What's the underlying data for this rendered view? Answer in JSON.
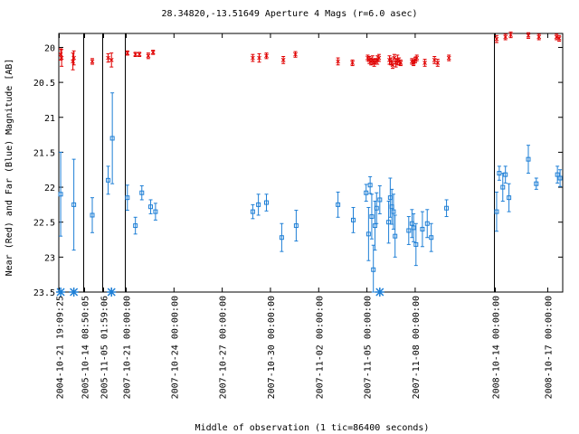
{
  "chart_data": {
    "type": "scatter",
    "title": "28.34820,-13.51649   Aperture 4 Mags (r=6.0 asec)",
    "xlabel": "Middle of observation (1 tic=86400 seconds)",
    "ylabel": "Near (Red) and Far (Blue) Magnitude [AB]",
    "ylim": [
      23.5,
      19.8
    ],
    "y_inverted": true,
    "y_ticks": [
      "20",
      "20.5",
      "21",
      "21.5",
      "22",
      "22.5",
      "23",
      "23.5"
    ],
    "x_axis": "broken time axis; each segment separated by a vertical line",
    "segments": [
      {
        "tick_label": "2004-10-21 19:09:25",
        "start": "2004-10-21 19:09:25",
        "span_days": 1.3
      },
      {
        "tick_label": "2005-10-14 08:50:05",
        "start": "2005-10-14 08:50:05",
        "span_days": 1.0
      },
      {
        "tick_label": "2005-11-05 01:59:06",
        "start": "2005-11-05 01:59:06",
        "span_days": 1.3
      },
      {
        "tick_label": "2007-10-21 00:00:00",
        "start": "2007-10-21 00:00:00",
        "span_days": 22.9
      },
      {
        "tick_label": "2008-10-14 00:00:00",
        "start": "2008-10-14 00:00:00",
        "span_days": 3.85
      }
    ],
    "inner_ticks": [
      {
        "label": "2007-10-24 00:00:00",
        "date": "2007-10-24"
      },
      {
        "label": "2007-10-27 00:00:00",
        "date": "2007-10-27"
      },
      {
        "label": "2007-10-30 00:00:00",
        "date": "2007-10-30"
      },
      {
        "label": "2007-11-02 00:00:00",
        "date": "2007-11-02"
      },
      {
        "label": "2007-11-05 00:00:00",
        "date": "2007-11-05"
      },
      {
        "label": "2007-11-08 00:00:00",
        "date": "2007-11-08"
      },
      {
        "label": "2008-10-17 00:00:00",
        "date": "2008-10-17"
      }
    ],
    "series": [
      {
        "color": "#e00000",
        "marker": "x",
        "points": [
          [
            0,
            0.1,
            20.1,
            0.08
          ],
          [
            0,
            0.15,
            20.15,
            0.12
          ],
          [
            0,
            0.75,
            20.2,
            0.12
          ],
          [
            0,
            0.8,
            20.15,
            0.1
          ],
          [
            1,
            0.45,
            20.2,
            0.04
          ],
          [
            2,
            0.3,
            20.15,
            0.06
          ],
          [
            2,
            0.5,
            20.18,
            0.1
          ],
          [
            3,
            0.1,
            20.08,
            0.03
          ],
          [
            3,
            0.6,
            20.1,
            0.03
          ],
          [
            3,
            0.85,
            20.1,
            0.03
          ],
          [
            3,
            1.4,
            20.12,
            0.04
          ],
          [
            3,
            1.7,
            20.07,
            0.03
          ],
          [
            3,
            7.9,
            20.15,
            0.05
          ],
          [
            3,
            8.3,
            20.15,
            0.06
          ],
          [
            3,
            8.75,
            20.12,
            0.04
          ],
          [
            3,
            9.8,
            20.18,
            0.05
          ],
          [
            3,
            10.55,
            20.1,
            0.04
          ],
          [
            3,
            13.2,
            20.2,
            0.05
          ],
          [
            3,
            14.1,
            20.22,
            0.04
          ],
          [
            3,
            15.05,
            20.15,
            0.04
          ],
          [
            3,
            15.15,
            20.18,
            0.05
          ],
          [
            3,
            15.25,
            20.2,
            0.05
          ],
          [
            3,
            15.35,
            20.18,
            0.06
          ],
          [
            3,
            15.45,
            20.22,
            0.05
          ],
          [
            3,
            15.55,
            20.2,
            0.04
          ],
          [
            3,
            15.65,
            20.18,
            0.06
          ],
          [
            3,
            15.75,
            20.15,
            0.05
          ],
          [
            3,
            16.4,
            20.18,
            0.06
          ],
          [
            3,
            16.5,
            20.2,
            0.05
          ],
          [
            3,
            16.6,
            20.25,
            0.05
          ],
          [
            3,
            16.7,
            20.15,
            0.05
          ],
          [
            3,
            16.8,
            20.22,
            0.06
          ],
          [
            3,
            16.9,
            20.18,
            0.07
          ],
          [
            3,
            17.0,
            20.2,
            0.05
          ],
          [
            3,
            17.1,
            20.22,
            0.04
          ],
          [
            3,
            17.8,
            20.2,
            0.04
          ],
          [
            3,
            17.9,
            20.22,
            0.04
          ],
          [
            3,
            18.0,
            20.18,
            0.04
          ],
          [
            3,
            18.1,
            20.15,
            0.04
          ],
          [
            3,
            18.6,
            20.22,
            0.05
          ],
          [
            3,
            19.2,
            20.18,
            0.05
          ],
          [
            3,
            19.4,
            20.22,
            0.05
          ],
          [
            3,
            20.1,
            20.15,
            0.04
          ],
          [
            4,
            0.1,
            19.88,
            0.05
          ],
          [
            4,
            0.6,
            19.85,
            0.04
          ],
          [
            4,
            0.9,
            19.82,
            0.04
          ],
          [
            4,
            1.9,
            19.83,
            0.04
          ],
          [
            4,
            2.5,
            19.85,
            0.04
          ],
          [
            4,
            3.5,
            19.85,
            0.04
          ],
          [
            4,
            3.65,
            19.87,
            0.04
          ]
        ]
      },
      {
        "color": "#1e7fd6",
        "marker": "square",
        "points": [
          [
            0,
            0.1,
            22.1,
            0.6
          ],
          [
            0,
            0.8,
            22.25,
            0.65
          ],
          [
            1,
            0.45,
            22.4,
            0.25
          ],
          [
            2,
            0.3,
            21.9,
            0.2
          ],
          [
            2,
            0.55,
            21.3,
            0.65
          ],
          [
            3,
            0.1,
            22.15,
            0.18
          ],
          [
            3,
            0.6,
            22.55,
            0.12
          ],
          [
            3,
            1.0,
            22.08,
            0.1
          ],
          [
            3,
            1.55,
            22.28,
            0.1
          ],
          [
            3,
            1.85,
            22.35,
            0.12
          ],
          [
            3,
            7.9,
            22.35,
            0.1
          ],
          [
            3,
            8.25,
            22.25,
            0.15
          ],
          [
            3,
            8.75,
            22.22,
            0.12
          ],
          [
            3,
            9.7,
            22.72,
            0.2
          ],
          [
            3,
            10.6,
            22.55,
            0.22
          ],
          [
            3,
            13.2,
            22.25,
            0.18
          ],
          [
            3,
            14.15,
            22.47,
            0.18
          ],
          [
            3,
            14.95,
            22.08,
            0.12
          ],
          [
            3,
            15.1,
            22.67,
            0.38
          ],
          [
            3,
            15.2,
            21.97,
            0.12
          ],
          [
            3,
            15.3,
            22.42,
            0.32
          ],
          [
            3,
            15.4,
            23.18,
            0.35
          ],
          [
            3,
            15.5,
            22.55,
            0.35
          ],
          [
            3,
            15.6,
            22.3,
            0.22
          ],
          [
            3,
            15.8,
            22.18,
            0.2
          ],
          [
            3,
            16.35,
            22.5,
            0.3
          ],
          [
            3,
            16.45,
            22.15,
            0.28
          ],
          [
            3,
            16.55,
            22.28,
            0.25
          ],
          [
            3,
            16.65,
            22.35,
            0.25
          ],
          [
            3,
            16.75,
            22.7,
            0.3
          ],
          [
            3,
            17.6,
            22.62,
            0.2
          ],
          [
            3,
            17.8,
            22.52,
            0.2
          ],
          [
            3,
            17.9,
            22.58,
            0.2
          ],
          [
            3,
            18.05,
            22.82,
            0.3
          ],
          [
            3,
            18.45,
            22.6,
            0.25
          ],
          [
            3,
            18.75,
            22.52,
            0.2
          ],
          [
            3,
            19.0,
            22.72,
            0.2
          ],
          [
            3,
            19.95,
            22.3,
            0.12
          ],
          [
            4,
            0.1,
            22.35,
            0.28
          ],
          [
            4,
            0.25,
            21.8,
            0.1
          ],
          [
            4,
            0.45,
            22.0,
            0.2
          ],
          [
            4,
            0.6,
            21.82,
            0.12
          ],
          [
            4,
            0.8,
            22.15,
            0.2
          ],
          [
            4,
            1.9,
            21.6,
            0.2
          ],
          [
            4,
            2.35,
            21.95,
            0.08
          ],
          [
            4,
            3.55,
            21.82,
            0.12
          ],
          [
            4,
            3.7,
            21.87,
            0.12
          ]
        ]
      }
    ],
    "upper_limit_markers": [
      [
        0,
        0.1
      ],
      [
        0,
        0.8
      ],
      [
        2,
        0.5
      ],
      [
        3,
        15.8
      ]
    ]
  }
}
